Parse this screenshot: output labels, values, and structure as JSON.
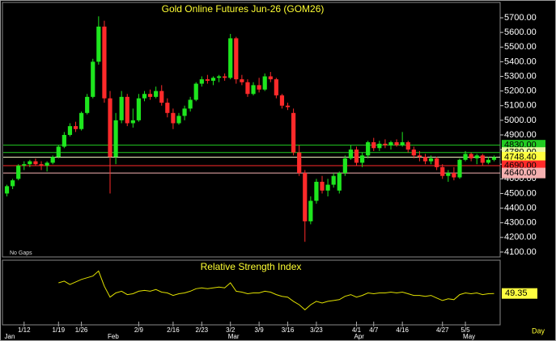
{
  "chart_data": [
    {
      "type": "candlestick",
      "title": "Gold Online Futures Jun-26 (GOM26)",
      "note": "No Gaps",
      "x_label": "Day",
      "categories": [
        null,
        null,
        null,
        "1/12",
        null,
        null,
        null,
        null,
        null,
        "1/19",
        null,
        null,
        null,
        "1/26",
        null,
        null,
        null,
        null,
        null,
        null,
        null,
        null,
        null,
        "2/9",
        null,
        null,
        null,
        null,
        null,
        "2/16",
        null,
        null,
        null,
        null,
        "2/23",
        null,
        null,
        null,
        null,
        "3/2",
        null,
        null,
        null,
        null,
        "3/9",
        null,
        null,
        null,
        null,
        "3/16",
        null,
        null,
        null,
        null,
        "3/23",
        null,
        null,
        null,
        null,
        null,
        null,
        "4/1",
        null,
        null,
        "4/7",
        null,
        null,
        null,
        null,
        "4/16",
        null,
        null,
        null,
        null,
        null,
        null,
        "4/27",
        null,
        null,
        null,
        "5/5",
        null,
        null,
        null,
        null,
        null
      ],
      "months": [
        {
          "value": 0,
          "label": "Jan"
        },
        {
          "value": 18,
          "label": "Feb"
        },
        {
          "value": 39,
          "label": "Mar"
        },
        {
          "value": 61,
          "label": "Apr"
        },
        {
          "value": 80,
          "label": "May"
        }
      ],
      "open": [
        4500,
        4550,
        4600,
        4690,
        4700,
        4720,
        4700,
        4690,
        4710,
        4750,
        4820,
        4900,
        4960,
        4940,
        5050,
        5160,
        5400,
        5640,
        5150,
        4750,
        5000,
        5160,
        4980,
        5000,
        5150,
        5180,
        5160,
        5200,
        5120,
        5050,
        4980,
        5030,
        5080,
        5140,
        5250,
        5280,
        5270,
        5290,
        5300,
        5290,
        5560,
        5280,
        5260,
        5180,
        5240,
        5210,
        5300,
        5280,
        5170,
        5100,
        5050,
        4780,
        4640,
        4310,
        4450,
        4580,
        4520,
        4560,
        4520,
        4640,
        4740,
        4800,
        4710,
        4760,
        4850,
        4810,
        4840,
        4830,
        4850,
        4830,
        4850,
        4800,
        4760,
        4750,
        4720,
        4740,
        4680,
        4620,
        4640,
        4610,
        4730,
        4770,
        4740,
        4760,
        4710,
        4730
      ],
      "high": [
        4560,
        4600,
        4700,
        4720,
        4730,
        4740,
        4720,
        4720,
        4760,
        4830,
        4920,
        4980,
        4990,
        5060,
        5180,
        5420,
        5710,
        5680,
        5200,
        5050,
        5200,
        5180,
        5080,
        5180,
        5200,
        5210,
        5230,
        5240,
        5150,
        5080,
        5050,
        5100,
        5160,
        5260,
        5300,
        5310,
        5300,
        5310,
        5320,
        5590,
        5570,
        5310,
        5280,
        5260,
        5290,
        5320,
        5330,
        5290,
        5180,
        5120,
        5080,
        4830,
        4660,
        4480,
        4600,
        4620,
        4600,
        4640,
        4650,
        4760,
        4830,
        4820,
        4780,
        4860,
        4880,
        4860,
        4870,
        4860,
        4870,
        4920,
        4860,
        4820,
        4790,
        4770,
        4760,
        4750,
        4700,
        4660,
        4680,
        4740,
        4790,
        4780,
        4770,
        4770,
        4750,
        4760
      ],
      "low": [
        4480,
        4530,
        4590,
        4660,
        4680,
        4690,
        4660,
        4650,
        4700,
        4740,
        4810,
        4890,
        4920,
        4930,
        5040,
        5150,
        5380,
        5120,
        4500,
        4700,
        4980,
        4960,
        4950,
        4990,
        5130,
        5140,
        5150,
        5100,
        5020,
        4940,
        4970,
        5000,
        5060,
        5130,
        5230,
        5250,
        5240,
        5260,
        5270,
        5280,
        5250,
        5240,
        5160,
        5170,
        5190,
        5200,
        5260,
        5150,
        5080,
        5070,
        4760,
        4620,
        4170,
        4290,
        4430,
        4500,
        4480,
        4540,
        4500,
        4620,
        4730,
        4690,
        4680,
        4740,
        4790,
        4790,
        4810,
        4800,
        4820,
        4820,
        4780,
        4740,
        4720,
        4700,
        4700,
        4660,
        4600,
        4580,
        4590,
        4600,
        4720,
        4720,
        4700,
        4690,
        4700,
        4720
      ],
      "close": [
        4550,
        4590,
        4690,
        4700,
        4720,
        4700,
        4690,
        4710,
        4750,
        4820,
        4900,
        4960,
        4940,
        5050,
        5160,
        5400,
        5640,
        5150,
        4750,
        5000,
        5160,
        4980,
        5000,
        5150,
        5180,
        5160,
        5200,
        5120,
        5050,
        4980,
        5030,
        5080,
        5140,
        5250,
        5280,
        5270,
        5290,
        5300,
        5290,
        5560,
        5280,
        5260,
        5180,
        5240,
        5210,
        5300,
        5280,
        5170,
        5100,
        5090,
        4780,
        4640,
        4310,
        4450,
        4580,
        4520,
        4560,
        4620,
        4640,
        4740,
        4800,
        4710,
        4760,
        4850,
        4810,
        4840,
        4830,
        4850,
        4830,
        4850,
        4800,
        4760,
        4750,
        4720,
        4740,
        4680,
        4620,
        4640,
        4610,
        4730,
        4770,
        4740,
        4760,
        4710,
        4730,
        4748.4
      ],
      "up_color": "#1ee61e",
      "down_color": "#ff2a2a",
      "ylim": [
        4072,
        5794
      ],
      "yticks": [
        {
          "value": 4100,
          "label": "4100.00"
        },
        {
          "value": 4200,
          "label": "4200.00"
        },
        {
          "value": 4300,
          "label": "4300.00"
        },
        {
          "value": 4400,
          "label": "4400.00"
        },
        {
          "value": 4500,
          "label": "4500.00"
        },
        {
          "value": 4600,
          "label": "4600.00"
        },
        {
          "value": 4700,
          "label": "4700.00"
        },
        {
          "value": 4800,
          "label": "4800.00"
        },
        {
          "value": 4900,
          "label": "4900.00"
        },
        {
          "value": 5000,
          "label": "5000.00"
        },
        {
          "value": 5100,
          "label": "5100.00"
        },
        {
          "value": 5200,
          "label": "5200.00"
        },
        {
          "value": 5300,
          "label": "5300.00"
        },
        {
          "value": 5400,
          "label": "5400.00"
        },
        {
          "value": 5500,
          "label": "5500.00"
        },
        {
          "value": 5600,
          "label": "5600.00"
        },
        {
          "value": 5700,
          "label": "5700.00"
        }
      ],
      "ref_lines": [
        {
          "value": 4830,
          "label": "4830.00",
          "color": "#22cc22",
          "box": "#22cc22"
        },
        {
          "value": 4780,
          "label": "4780.00",
          "color": "#22cc22",
          "box": "#e8f8a0"
        },
        {
          "value": 4748.4,
          "label": "4748.40",
          "color": "#f0f0c0",
          "box": "#ffff40"
        },
        {
          "value": 4690,
          "label": "4690.00",
          "color": "#ff2a2a",
          "box": "#ff2a2a"
        },
        {
          "value": 4640,
          "label": "4640.00",
          "color": "#f4b0b0",
          "box": "#f4b0b0"
        }
      ]
    },
    {
      "type": "line",
      "title": "Relative Strength Index",
      "color": "#e0e000",
      "ylim": [
        15,
        85
      ],
      "values": [
        null,
        null,
        null,
        null,
        null,
        null,
        null,
        null,
        null,
        62,
        64,
        60,
        63,
        66,
        68,
        70,
        76,
        58,
        45,
        50,
        52,
        48,
        49,
        52,
        53,
        52,
        54,
        51,
        50,
        47,
        49,
        50,
        52,
        55,
        56,
        55,
        56,
        57,
        56,
        62,
        52,
        51,
        49,
        50,
        50,
        52,
        51,
        48,
        46,
        45,
        40,
        36,
        30,
        36,
        40,
        38,
        40,
        41,
        42,
        46,
        48,
        45,
        47,
        50,
        49,
        50,
        50,
        51,
        50,
        51,
        49,
        47,
        47,
        46,
        47,
        44,
        41,
        43,
        42,
        48,
        50,
        49,
        50,
        48,
        49,
        49.35
      ]
    }
  ]
}
